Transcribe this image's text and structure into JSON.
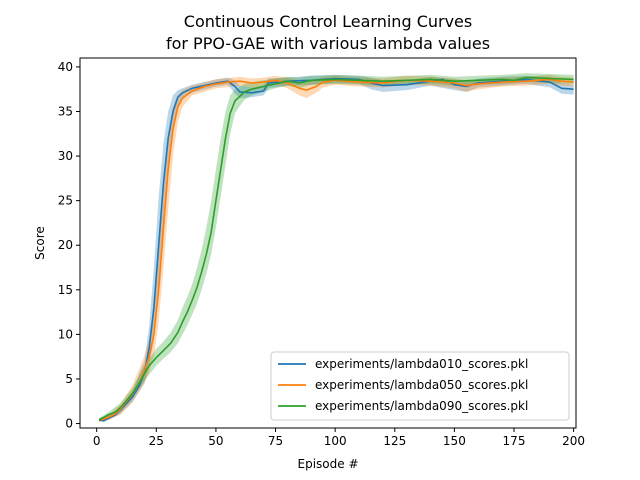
{
  "chart_data": {
    "type": "line",
    "title": [
      "Continuous Control Learning Curves",
      "for PPO-GAE with various lambda values"
    ],
    "xlabel": "Episode #",
    "ylabel": "Score",
    "xlim": [
      -7,
      201
    ],
    "ylim": [
      -0.5,
      41
    ],
    "x_ticks": [
      0,
      25,
      50,
      75,
      100,
      125,
      150,
      175,
      200
    ],
    "y_ticks": [
      0,
      5,
      10,
      15,
      20,
      25,
      30,
      35,
      40
    ],
    "grid": false,
    "legend_position": "lower-right",
    "series": [
      {
        "name": "experiments/lambda010_scores.pkl",
        "color": "#1f77b4",
        "points": [
          [
            1,
            0.4
          ],
          [
            3,
            0.3
          ],
          [
            5,
            0.6
          ],
          [
            8,
            1.0
          ],
          [
            10,
            1.5
          ],
          [
            12,
            2.1
          ],
          [
            15,
            3.0
          ],
          [
            18,
            4.3
          ],
          [
            20,
            5.7
          ],
          [
            22,
            8.5
          ],
          [
            24,
            13.0
          ],
          [
            26,
            20.0
          ],
          [
            28,
            27.0
          ],
          [
            30,
            32.0
          ],
          [
            32,
            35.0
          ],
          [
            34,
            36.6
          ],
          [
            36,
            37.1
          ],
          [
            40,
            37.6
          ],
          [
            45,
            37.9
          ],
          [
            50,
            38.2
          ],
          [
            55,
            38.4
          ],
          [
            58,
            37.8
          ],
          [
            60,
            37.2
          ],
          [
            65,
            37.1
          ],
          [
            70,
            37.3
          ],
          [
            72,
            38.2
          ],
          [
            80,
            38.4
          ],
          [
            90,
            38.5
          ],
          [
            100,
            38.7
          ],
          [
            110,
            38.6
          ],
          [
            115,
            38.2
          ],
          [
            120,
            37.9
          ],
          [
            130,
            38.0
          ],
          [
            140,
            38.4
          ],
          [
            145,
            38.6
          ],
          [
            150,
            38.0
          ],
          [
            155,
            37.8
          ],
          [
            160,
            38.2
          ],
          [
            170,
            38.4
          ],
          [
            180,
            38.6
          ],
          [
            190,
            38.3
          ],
          [
            195,
            37.6
          ],
          [
            200,
            37.5
          ]
        ],
        "band": [
          [
            1,
            0.2,
            0.6
          ],
          [
            5,
            0.4,
            0.9
          ],
          [
            10,
            1.1,
            1.9
          ],
          [
            15,
            2.4,
            3.6
          ],
          [
            20,
            4.5,
            7.0
          ],
          [
            22,
            6.5,
            11.0
          ],
          [
            24,
            9.5,
            17.5
          ],
          [
            26,
            15.0,
            25.5
          ],
          [
            28,
            22.0,
            31.5
          ],
          [
            30,
            28.5,
            35.0
          ],
          [
            32,
            33.0,
            36.8
          ],
          [
            34,
            35.4,
            37.4
          ],
          [
            36,
            36.5,
            37.6
          ],
          [
            40,
            37.1,
            38.0
          ],
          [
            50,
            37.8,
            38.6
          ],
          [
            55,
            38.0,
            38.8
          ],
          [
            58,
            37.0,
            38.5
          ],
          [
            60,
            36.5,
            37.9
          ],
          [
            65,
            36.6,
            37.7
          ],
          [
            70,
            36.8,
            37.9
          ],
          [
            72,
            37.6,
            38.7
          ],
          [
            80,
            37.9,
            38.8
          ],
          [
            90,
            38.0,
            39.0
          ],
          [
            100,
            38.2,
            39.1
          ],
          [
            110,
            38.1,
            39.0
          ],
          [
            115,
            37.5,
            38.8
          ],
          [
            120,
            37.2,
            38.5
          ],
          [
            130,
            37.4,
            38.5
          ],
          [
            140,
            37.9,
            38.9
          ],
          [
            150,
            37.4,
            38.6
          ],
          [
            155,
            37.2,
            38.4
          ],
          [
            160,
            37.7,
            38.7
          ],
          [
            170,
            37.9,
            38.9
          ],
          [
            180,
            38.1,
            39.0
          ],
          [
            190,
            37.7,
            38.9
          ],
          [
            195,
            37.0,
            38.2
          ],
          [
            200,
            36.9,
            38.0
          ]
        ]
      },
      {
        "name": "experiments/lambda050_scores.pkl",
        "color": "#ff7f0e",
        "points": [
          [
            1,
            0.4
          ],
          [
            3,
            0.5
          ],
          [
            5,
            0.7
          ],
          [
            8,
            1.1
          ],
          [
            10,
            1.6
          ],
          [
            12,
            2.3
          ],
          [
            15,
            3.3
          ],
          [
            18,
            4.6
          ],
          [
            20,
            6.0
          ],
          [
            22,
            7.5
          ],
          [
            24,
            10.0
          ],
          [
            26,
            15.0
          ],
          [
            28,
            22.0
          ],
          [
            30,
            28.5
          ],
          [
            32,
            33.0
          ],
          [
            34,
            35.5
          ],
          [
            36,
            36.5
          ],
          [
            40,
            37.3
          ],
          [
            45,
            37.8
          ],
          [
            50,
            38.1
          ],
          [
            55,
            38.3
          ],
          [
            60,
            38.4
          ],
          [
            65,
            38.2
          ],
          [
            70,
            38.3
          ],
          [
            75,
            38.5
          ],
          [
            80,
            38.2
          ],
          [
            85,
            37.6
          ],
          [
            88,
            37.4
          ],
          [
            92,
            37.8
          ],
          [
            95,
            38.3
          ],
          [
            100,
            38.5
          ],
          [
            110,
            38.3
          ],
          [
            120,
            38.2
          ],
          [
            130,
            38.5
          ],
          [
            140,
            38.4
          ],
          [
            150,
            38.2
          ],
          [
            155,
            37.9
          ],
          [
            160,
            38.1
          ],
          [
            170,
            38.3
          ],
          [
            180,
            38.4
          ],
          [
            190,
            38.6
          ],
          [
            195,
            38.4
          ],
          [
            200,
            38.3
          ]
        ],
        "band": [
          [
            1,
            0.2,
            0.6
          ],
          [
            5,
            0.4,
            1.0
          ],
          [
            10,
            1.0,
            2.2
          ],
          [
            15,
            2.4,
            4.3
          ],
          [
            20,
            4.5,
            7.6
          ],
          [
            22,
            5.8,
            9.5
          ],
          [
            24,
            7.5,
            13.0
          ],
          [
            26,
            11.5,
            19.0
          ],
          [
            28,
            17.5,
            26.5
          ],
          [
            30,
            24.0,
            32.0
          ],
          [
            32,
            30.0,
            35.5
          ],
          [
            34,
            33.8,
            36.8
          ],
          [
            36,
            35.5,
            37.4
          ],
          [
            40,
            36.8,
            37.9
          ],
          [
            50,
            37.6,
            38.6
          ],
          [
            60,
            37.9,
            38.9
          ],
          [
            65,
            37.7,
            38.7
          ],
          [
            70,
            37.8,
            38.8
          ],
          [
            75,
            38.0,
            39.0
          ],
          [
            80,
            37.6,
            38.8
          ],
          [
            85,
            36.8,
            38.4
          ],
          [
            88,
            36.5,
            38.2
          ],
          [
            92,
            37.1,
            38.6
          ],
          [
            95,
            37.7,
            38.9
          ],
          [
            100,
            38.0,
            39.0
          ],
          [
            110,
            37.8,
            38.8
          ],
          [
            120,
            37.7,
            38.7
          ],
          [
            130,
            38.0,
            39.0
          ],
          [
            140,
            37.9,
            38.9
          ],
          [
            150,
            37.6,
            38.7
          ],
          [
            155,
            37.2,
            38.5
          ],
          [
            160,
            37.5,
            38.6
          ],
          [
            170,
            37.8,
            38.8
          ],
          [
            180,
            37.9,
            38.9
          ],
          [
            190,
            38.1,
            39.1
          ],
          [
            195,
            37.9,
            38.9
          ],
          [
            200,
            37.8,
            38.8
          ]
        ]
      },
      {
        "name": "experiments/lambda090_scores.pkl",
        "color": "#2ca02c",
        "points": [
          [
            1,
            0.4
          ],
          [
            3,
            0.7
          ],
          [
            5,
            1.0
          ],
          [
            8,
            1.3
          ],
          [
            10,
            1.8
          ],
          [
            12,
            2.4
          ],
          [
            15,
            3.4
          ],
          [
            18,
            4.6
          ],
          [
            20,
            5.6
          ],
          [
            22,
            6.5
          ],
          [
            25,
            7.4
          ],
          [
            28,
            8.2
          ],
          [
            31,
            9.0
          ],
          [
            34,
            10.2
          ],
          [
            36,
            11.4
          ],
          [
            38,
            12.5
          ],
          [
            40,
            13.8
          ],
          [
            42,
            15.2
          ],
          [
            44,
            17.0
          ],
          [
            46,
            19.0
          ],
          [
            48,
            21.5
          ],
          [
            50,
            25.0
          ],
          [
            52,
            28.5
          ],
          [
            54,
            32.0
          ],
          [
            56,
            34.8
          ],
          [
            58,
            36.2
          ],
          [
            60,
            36.7
          ],
          [
            62,
            37.2
          ],
          [
            65,
            37.5
          ],
          [
            70,
            37.8
          ],
          [
            75,
            38.1
          ],
          [
            80,
            38.4
          ],
          [
            85,
            38.2
          ],
          [
            90,
            38.5
          ],
          [
            100,
            38.6
          ],
          [
            110,
            38.5
          ],
          [
            120,
            38.4
          ],
          [
            130,
            38.5
          ],
          [
            140,
            38.6
          ],
          [
            150,
            38.4
          ],
          [
            160,
            38.5
          ],
          [
            170,
            38.6
          ],
          [
            175,
            38.5
          ],
          [
            180,
            38.8
          ],
          [
            190,
            38.7
          ],
          [
            200,
            38.6
          ]
        ],
        "band": [
          [
            1,
            0.2,
            0.6
          ],
          [
            5,
            0.7,
            1.3
          ],
          [
            10,
            1.4,
            2.3
          ],
          [
            15,
            2.8,
            4.0
          ],
          [
            20,
            4.8,
            6.5
          ],
          [
            25,
            6.5,
            8.4
          ],
          [
            28,
            7.3,
            9.2
          ],
          [
            31,
            8.0,
            10.2
          ],
          [
            34,
            9.0,
            11.6
          ],
          [
            36,
            10.0,
            13.0
          ],
          [
            38,
            11.0,
            14.2
          ],
          [
            40,
            12.2,
            15.6
          ],
          [
            42,
            13.4,
            17.4
          ],
          [
            44,
            15.0,
            19.5
          ],
          [
            46,
            16.8,
            22.0
          ],
          [
            48,
            19.0,
            25.0
          ],
          [
            50,
            22.0,
            28.5
          ],
          [
            52,
            25.5,
            32.0
          ],
          [
            54,
            29.0,
            35.0
          ],
          [
            56,
            32.5,
            36.8
          ],
          [
            58,
            34.8,
            37.5
          ],
          [
            60,
            35.6,
            37.8
          ],
          [
            62,
            36.3,
            38.1
          ],
          [
            65,
            36.8,
            38.3
          ],
          [
            70,
            37.2,
            38.5
          ],
          [
            75,
            37.6,
            38.7
          ],
          [
            80,
            37.9,
            38.9
          ],
          [
            85,
            37.6,
            38.8
          ],
          [
            90,
            38.0,
            39.0
          ],
          [
            100,
            38.1,
            39.1
          ],
          [
            110,
            38.0,
            39.0
          ],
          [
            120,
            37.9,
            38.9
          ],
          [
            130,
            38.0,
            39.0
          ],
          [
            140,
            38.1,
            39.1
          ],
          [
            150,
            37.9,
            38.9
          ],
          [
            160,
            38.0,
            39.0
          ],
          [
            170,
            38.1,
            39.1
          ],
          [
            180,
            38.3,
            39.3
          ],
          [
            190,
            38.2,
            39.2
          ],
          [
            200,
            38.1,
            39.1
          ]
        ]
      }
    ]
  }
}
